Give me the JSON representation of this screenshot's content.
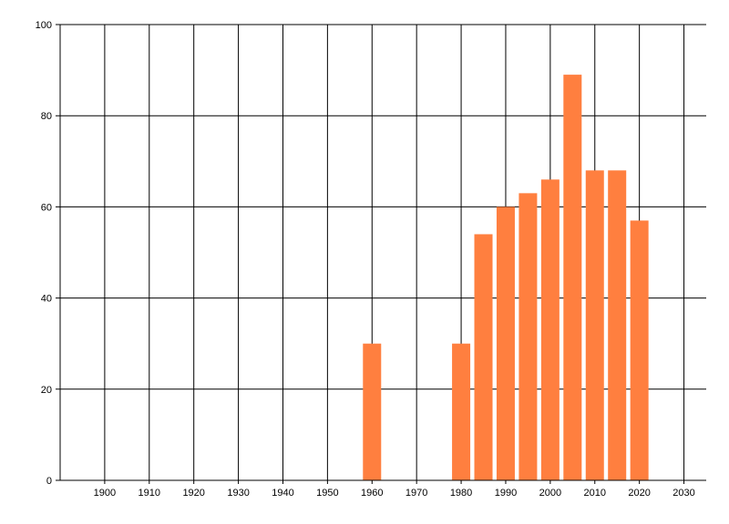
{
  "chart_data": {
    "type": "bar",
    "title": "",
    "xlabel": "",
    "ylabel": "",
    "x": [
      1960,
      1980,
      1985,
      1990,
      1995,
      2000,
      2005,
      2010,
      2015,
      2020
    ],
    "values": [
      30,
      30,
      54,
      60,
      63,
      66,
      89,
      68,
      68,
      57
    ],
    "xlim": [
      1890,
      2035
    ],
    "ylim": [
      0,
      100
    ],
    "x_ticks": [
      "1900",
      "1910",
      "1920",
      "1930",
      "1940",
      "1950",
      "1960",
      "1970",
      "1980",
      "1990",
      "2000",
      "2010",
      "2020",
      "2030"
    ],
    "y_ticks": [
      "0",
      "20",
      "40",
      "60",
      "80",
      "100"
    ],
    "grid": true,
    "legend": "none",
    "bar_color": "#ff7f3f",
    "grid_color": "#000000"
  }
}
